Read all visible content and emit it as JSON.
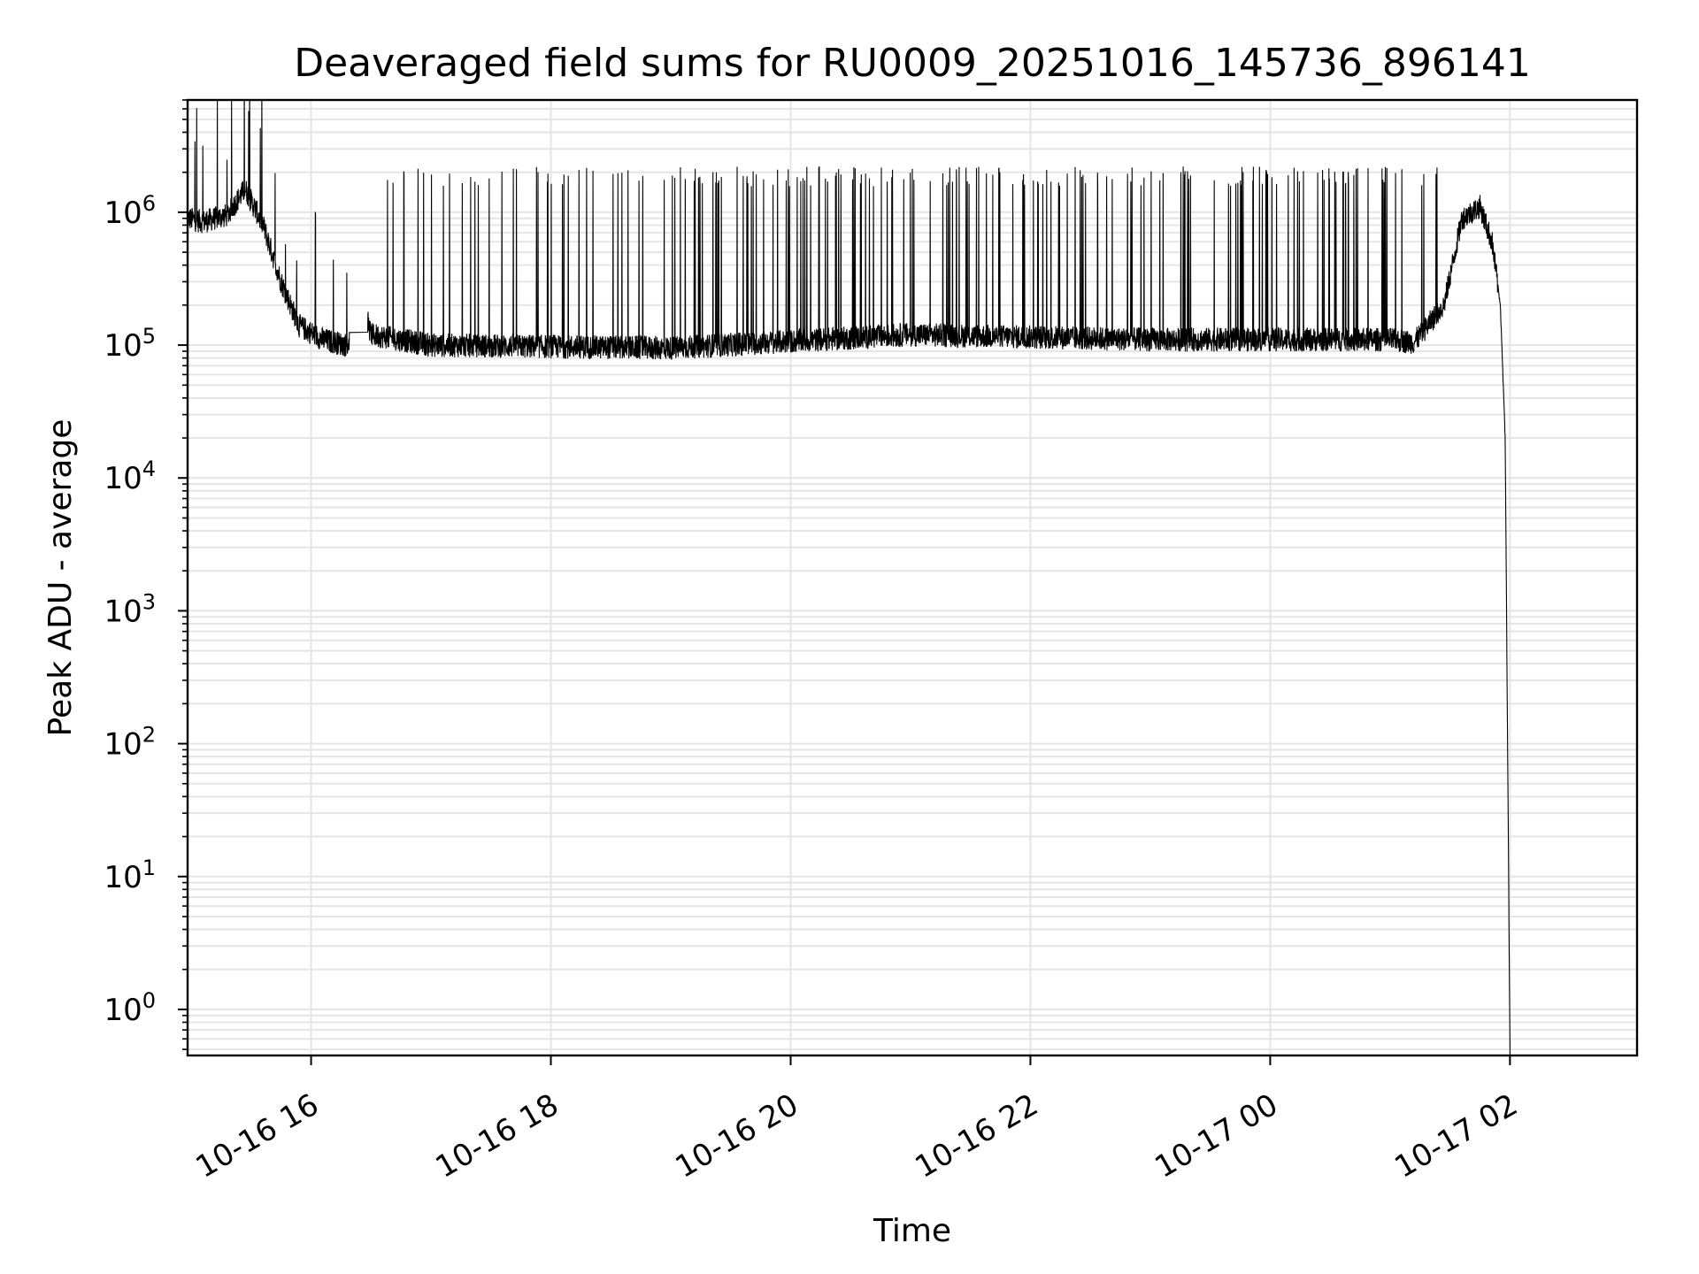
{
  "chart_data": {
    "type": "line",
    "title": "Deaveraged field sums for RU0009_20251016_145736_896141",
    "xlabel": "Time",
    "ylabel": "Peak ADU - average",
    "yscale": "log",
    "ylim": [
      0.45,
      7000000
    ],
    "xlim_hours": [
      14.97,
      27.06
    ],
    "grid": true,
    "series_color": "#000000",
    "grid_color": "#e5e5e5",
    "x_ticks": [
      {
        "hour": 16,
        "label": "10-16 16"
      },
      {
        "hour": 18,
        "label": "10-16 18"
      },
      {
        "hour": 20,
        "label": "10-16 20"
      },
      {
        "hour": 22,
        "label": "10-16 22"
      },
      {
        "hour": 24,
        "label": "10-17 00"
      },
      {
        "hour": 26,
        "label": "10-17 02"
      }
    ],
    "y_ticks": [
      {
        "exp": 0,
        "base": "10",
        "sup": "0"
      },
      {
        "exp": 1,
        "base": "10",
        "sup": "1"
      },
      {
        "exp": 2,
        "base": "10",
        "sup": "2"
      },
      {
        "exp": 3,
        "base": "10",
        "sup": "3"
      },
      {
        "exp": 4,
        "base": "10",
        "sup": "4"
      },
      {
        "exp": 5,
        "base": "10",
        "sup": "5"
      },
      {
        "exp": 6,
        "base": "10",
        "sup": "6"
      }
    ],
    "series": [
      {
        "name": "deaveraged field sum",
        "description_points": [
          {
            "hour": 14.97,
            "value": 900000
          },
          {
            "hour": 15.1,
            "value": 850000
          },
          {
            "hour": 15.3,
            "value": 950000
          },
          {
            "hour": 15.45,
            "value": 1500000
          },
          {
            "hour": 15.6,
            "value": 800000
          },
          {
            "hour": 15.75,
            "value": 300000
          },
          {
            "hour": 15.9,
            "value": 140000
          },
          {
            "hour": 16.1,
            "value": 110000
          },
          {
            "hour": 16.3,
            "value": 100000
          },
          {
            "hour": 16.45,
            "value": 180000
          },
          {
            "hour": 16.5,
            "value": 120000
          },
          {
            "hour": 17.0,
            "value": 100000
          },
          {
            "hour": 19.0,
            "value": 95000
          },
          {
            "hour": 21.0,
            "value": 120000
          },
          {
            "hour": 23.0,
            "value": 110000
          },
          {
            "hour": 25.0,
            "value": 110000
          },
          {
            "hour": 25.2,
            "value": 105000
          },
          {
            "hour": 25.45,
            "value": 200000
          },
          {
            "hour": 25.6,
            "value": 900000
          },
          {
            "hour": 25.75,
            "value": 1100000
          },
          {
            "hour": 25.85,
            "value": 600000
          },
          {
            "hour": 25.92,
            "value": 200000
          },
          {
            "hour": 25.96,
            "value": 20000
          },
          {
            "hour": 25.98,
            "value": 100
          },
          {
            "hour": 26.0,
            "value": 0.5
          }
        ],
        "baseline_level": 110000,
        "spike_level": 2000000
      }
    ]
  }
}
